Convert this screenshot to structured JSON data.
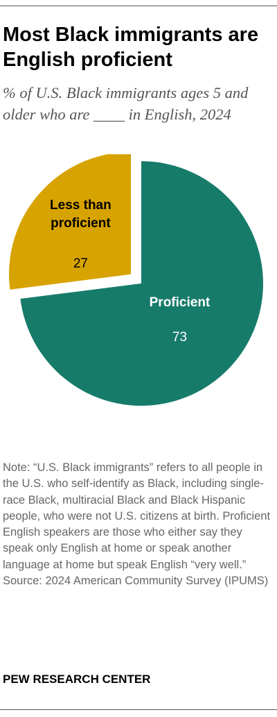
{
  "title": "Most Black immigrants are English proficient",
  "subtitle": "% of U.S. Black immigrants ages 5 and older who are ____ in English, 2024",
  "chart_data": {
    "type": "pie",
    "title": "Most Black immigrants are English proficient",
    "subtitle": "% of U.S. Black immigrants ages 5 and older who are ____ in English, 2024",
    "slices": [
      {
        "label": "Less than proficient",
        "label_lines": [
          "Less than",
          "proficient"
        ],
        "value": 27,
        "value_label": "27",
        "color": "#D7A300",
        "exploded": true
      },
      {
        "label": "Proficient",
        "label_lines": [
          "Proficient"
        ],
        "value": 73,
        "value_label": "73",
        "color": "#177B6A",
        "exploded": false
      }
    ]
  },
  "note": "Note: “U.S. Black immigrants” refers to all people in the U.S. who self-identify as Black, including single-race Black, multiracial Black and Black Hispanic people, who were not U.S. citizens at birth. Proficient English speakers are those who either say they speak only English at home or speak another language at home but speak English “very well.”",
  "source": "Source: 2024 American Community Survey (IPUMS)",
  "brand": "PEW RESEARCH CENTER"
}
